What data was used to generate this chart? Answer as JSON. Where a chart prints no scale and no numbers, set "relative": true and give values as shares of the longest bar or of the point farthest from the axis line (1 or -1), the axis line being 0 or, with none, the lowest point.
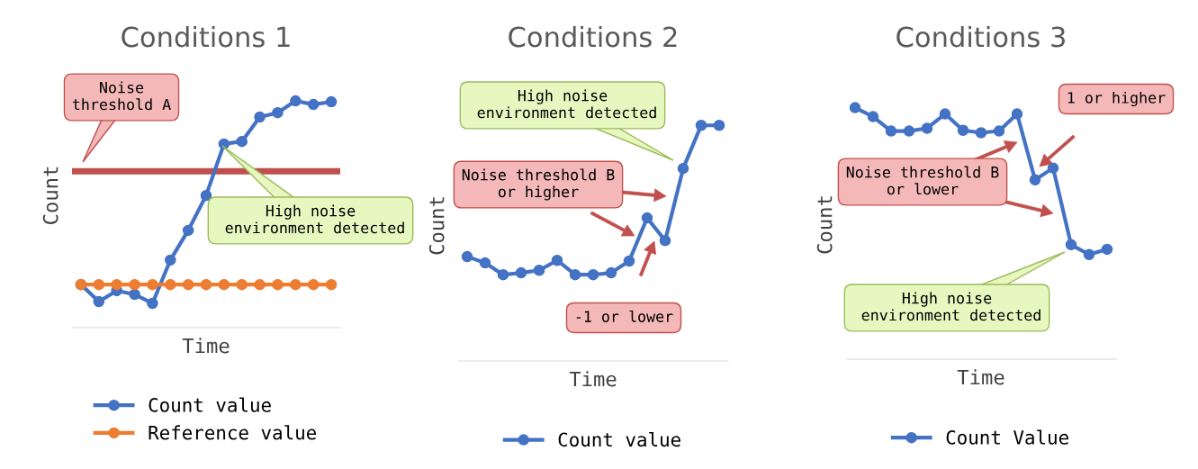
{
  "chart_data": [
    {
      "type": "line",
      "title": "Conditions 1",
      "xlabel": "Time",
      "ylabel": "Count",
      "relative": true,
      "marker": "circle",
      "legend": "bottom",
      "categories": [
        null,
        null,
        null,
        null,
        null,
        null,
        null,
        null,
        null,
        null,
        null,
        null,
        null,
        null,
        null
      ],
      "series": [
        {
          "name": "Count value",
          "color": "#4472c4",
          "values": [
            0.19,
            0.115,
            0.163,
            0.147,
            0.107,
            0.298,
            0.429,
            0.583,
            0.81,
            0.821,
            0.929,
            0.948,
            1,
            0.984,
            0.996
          ]
        },
        {
          "name": "Reference value",
          "color": "#ed7d31",
          "values": [
            0.19,
            0.19,
            0.19,
            0.19,
            0.19,
            0.19,
            0.19,
            0.19,
            0.19,
            0.19,
            0.19,
            0.19,
            0.19,
            0.19,
            0.19
          ]
        }
      ],
      "ref_lines": [
        {
          "axis": "y",
          "value": 0.69,
          "color": "#c0504d"
        }
      ],
      "annotations": [
        "Noise\nthreshold A",
        "High noise\n environment detected"
      ]
    },
    {
      "type": "line",
      "title": "Conditions 2",
      "xlabel": "Time",
      "ylabel": "Count",
      "relative": true,
      "marker": "circle",
      "legend": "bottom",
      "categories": [
        null,
        null,
        null,
        null,
        null,
        null,
        null,
        null,
        null,
        null,
        null,
        null,
        null,
        null,
        null
      ],
      "series": [
        {
          "name": "Count value",
          "color": "#4472c4",
          "values": [
            0.443,
            0.416,
            0.366,
            0.374,
            0.385,
            0.427,
            0.366,
            0.366,
            0.374,
            0.424,
            0.607,
            0.511,
            0.817,
            1,
            1
          ]
        }
      ],
      "annotations": [
        "High noise\n environment detected",
        "Noise threshold B\nor higher",
        "-1 or lower"
      ]
    },
    {
      "type": "line",
      "title": "Conditions 3",
      "xlabel": "Time",
      "ylabel": "Count",
      "relative": true,
      "marker": "circle",
      "legend": "bottom",
      "categories": [
        null,
        null,
        null,
        null,
        null,
        null,
        null,
        null,
        null,
        null,
        null,
        null,
        null,
        null,
        null
      ],
      "series": [
        {
          "name": "Count Value",
          "color": "#4472c4",
          "values": [
            1,
            0.964,
            0.907,
            0.907,
            0.918,
            0.975,
            0.91,
            0.9,
            0.907,
            0.975,
            0.713,
            0.76,
            0.455,
            0.416,
            0.437
          ]
        }
      ],
      "annotations": [
        "1 or higher",
        "Noise threshold B\nor lower",
        "High noise\n environment detected"
      ]
    }
  ]
}
